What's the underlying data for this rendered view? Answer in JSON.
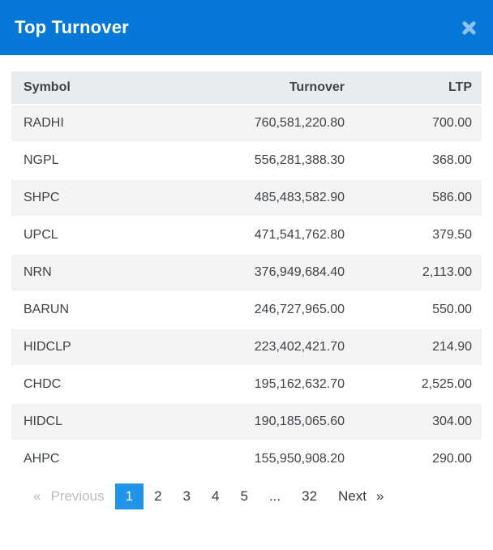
{
  "header": {
    "title": "Top Turnover",
    "close_icon": "close-x"
  },
  "table": {
    "columns": [
      {
        "label": "Symbol",
        "align": "left"
      },
      {
        "label": "Turnover",
        "align": "right"
      },
      {
        "label": "LTP",
        "align": "right"
      }
    ],
    "rows": [
      {
        "symbol": "RADHI",
        "turnover": "760,581,220.80",
        "ltp": "700.00"
      },
      {
        "symbol": "NGPL",
        "turnover": "556,281,388.30",
        "ltp": "368.00"
      },
      {
        "symbol": "SHPC",
        "turnover": "485,483,582.90",
        "ltp": "586.00"
      },
      {
        "symbol": "UPCL",
        "turnover": "471,541,762.80",
        "ltp": "379.50"
      },
      {
        "symbol": "NRN",
        "turnover": "376,949,684.40",
        "ltp": "2,113.00"
      },
      {
        "symbol": "BARUN",
        "turnover": "246,727,965.00",
        "ltp": "550.00"
      },
      {
        "symbol": "HIDCLP",
        "turnover": "223,402,421.70",
        "ltp": "214.90"
      },
      {
        "symbol": "CHDC",
        "turnover": "195,162,632.70",
        "ltp": "2,525.00"
      },
      {
        "symbol": "HIDCL",
        "turnover": "190,185,065.60",
        "ltp": "304.00"
      },
      {
        "symbol": "AHPC",
        "turnover": "155,950,908.20",
        "ltp": "290.00"
      }
    ]
  },
  "pagination": {
    "previous": {
      "symbol": "«",
      "label": "Previous",
      "disabled": true
    },
    "pages": [
      {
        "label": "1",
        "active": true
      },
      {
        "label": "2"
      },
      {
        "label": "3"
      },
      {
        "label": "4"
      },
      {
        "label": "5"
      },
      {
        "label": "...",
        "gap": true
      },
      {
        "label": "32"
      }
    ],
    "next": {
      "label": "Next",
      "symbol": "»",
      "disabled": false
    }
  },
  "colors": {
    "header_bg": "#0778d7",
    "active_page_bg": "#2095e8",
    "table_header_bg": "#e9eced",
    "stripe_bg": "#f4f4f5",
    "text": "#3e4347",
    "disabled_text": "#b9bcc0"
  }
}
